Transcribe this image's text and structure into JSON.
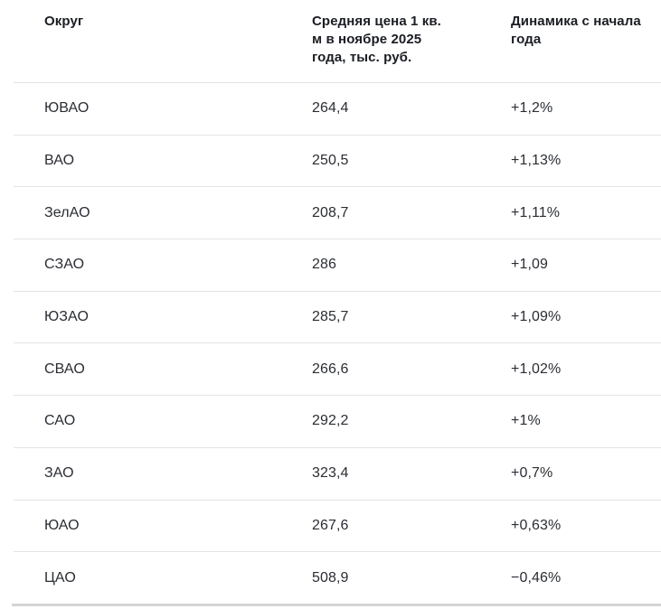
{
  "chart_data": {
    "type": "table",
    "columns": [
      "Округ",
      "Средняя цена 1 кв. м в ноябре 2025 года, тыс. руб.",
      "Динамика с начала года"
    ],
    "rows": [
      {
        "district": "ЮВАО",
        "price": "264,4",
        "change": "+1,2%"
      },
      {
        "district": "ВАО",
        "price": "250,5",
        "change": "+1,13%"
      },
      {
        "district": "ЗелАО",
        "price": "208,7",
        "change": "+1,11%"
      },
      {
        "district": "СЗАО",
        "price": "286",
        "change": "+1,09"
      },
      {
        "district": "ЮЗАО",
        "price": "285,7",
        "change": "+1,09%"
      },
      {
        "district": "СВАО",
        "price": "266,6",
        "change": "+1,02%"
      },
      {
        "district": "САО",
        "price": "292,2",
        "change": "+1%"
      },
      {
        "district": "ЗАО",
        "price": "323,4",
        "change": "+0,7%"
      },
      {
        "district": "ЮАО",
        "price": "267,6",
        "change": "+0,63%"
      },
      {
        "district": "ЦАО",
        "price": "508,9",
        "change": "−0,46%"
      }
    ]
  },
  "colors": {
    "header_text": "#1a1d23",
    "body_text": "#2a2d33",
    "row_divider": "#e4e4e4",
    "bottom_bar": "#d5d5d5",
    "background": "#ffffff"
  }
}
